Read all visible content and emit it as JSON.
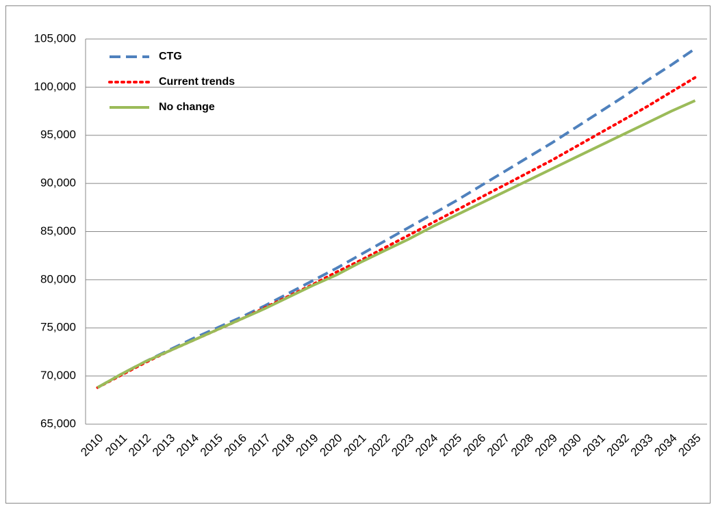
{
  "chart_data": {
    "type": "line",
    "categories": [
      "2010",
      "2011",
      "2012",
      "2013",
      "2014",
      "2015",
      "2016",
      "2017",
      "2018",
      "2019",
      "2020",
      "2021",
      "2022",
      "2023",
      "2024",
      "2025",
      "2026",
      "2027",
      "2028",
      "2029",
      "2030",
      "2031",
      "2032",
      "2033",
      "2034",
      "2035"
    ],
    "series": [
      {
        "name": "CTG",
        "color": "#4f81bd",
        "dash": "dashed",
        "values": [
          68800,
          70200,
          71500,
          72700,
          73900,
          75000,
          76100,
          77300,
          78600,
          79900,
          81200,
          82600,
          84000,
          85400,
          86800,
          88200,
          89700,
          91200,
          92700,
          94200,
          95800,
          97400,
          99000,
          100700,
          102300,
          104000
        ]
      },
      {
        "name": "Current trends",
        "color": "#ff0000",
        "dash": "dotted",
        "values": [
          68800,
          70100,
          71400,
          72600,
          73700,
          74800,
          75900,
          77100,
          78300,
          79500,
          80800,
          82000,
          83300,
          84600,
          85900,
          87200,
          88500,
          89800,
          91100,
          92400,
          93800,
          95200,
          96600,
          98000,
          99500,
          101000
        ]
      },
      {
        "name": "No change",
        "color": "#9bbb59",
        "dash": "solid",
        "values": [
          68800,
          70200,
          71500,
          72600,
          73700,
          74800,
          75900,
          77000,
          78200,
          79400,
          80500,
          81800,
          83000,
          84200,
          85500,
          86700,
          87900,
          89100,
          90300,
          91500,
          92700,
          93900,
          95100,
          96300,
          97500,
          98600
        ]
      }
    ],
    "ylim": [
      65000,
      105000
    ],
    "yticks": [
      {
        "value": 65000,
        "label": "65,000"
      },
      {
        "value": 70000,
        "label": "70,000"
      },
      {
        "value": 75000,
        "label": "75,000"
      },
      {
        "value": 80000,
        "label": "80,000"
      },
      {
        "value": 85000,
        "label": "85,000"
      },
      {
        "value": 90000,
        "label": "90,000"
      },
      {
        "value": 95000,
        "label": "95,000"
      },
      {
        "value": 100000,
        "label": "100,000"
      },
      {
        "value": 105000,
        "label": "105,000"
      }
    ],
    "grid": true,
    "legend": "top-left"
  }
}
